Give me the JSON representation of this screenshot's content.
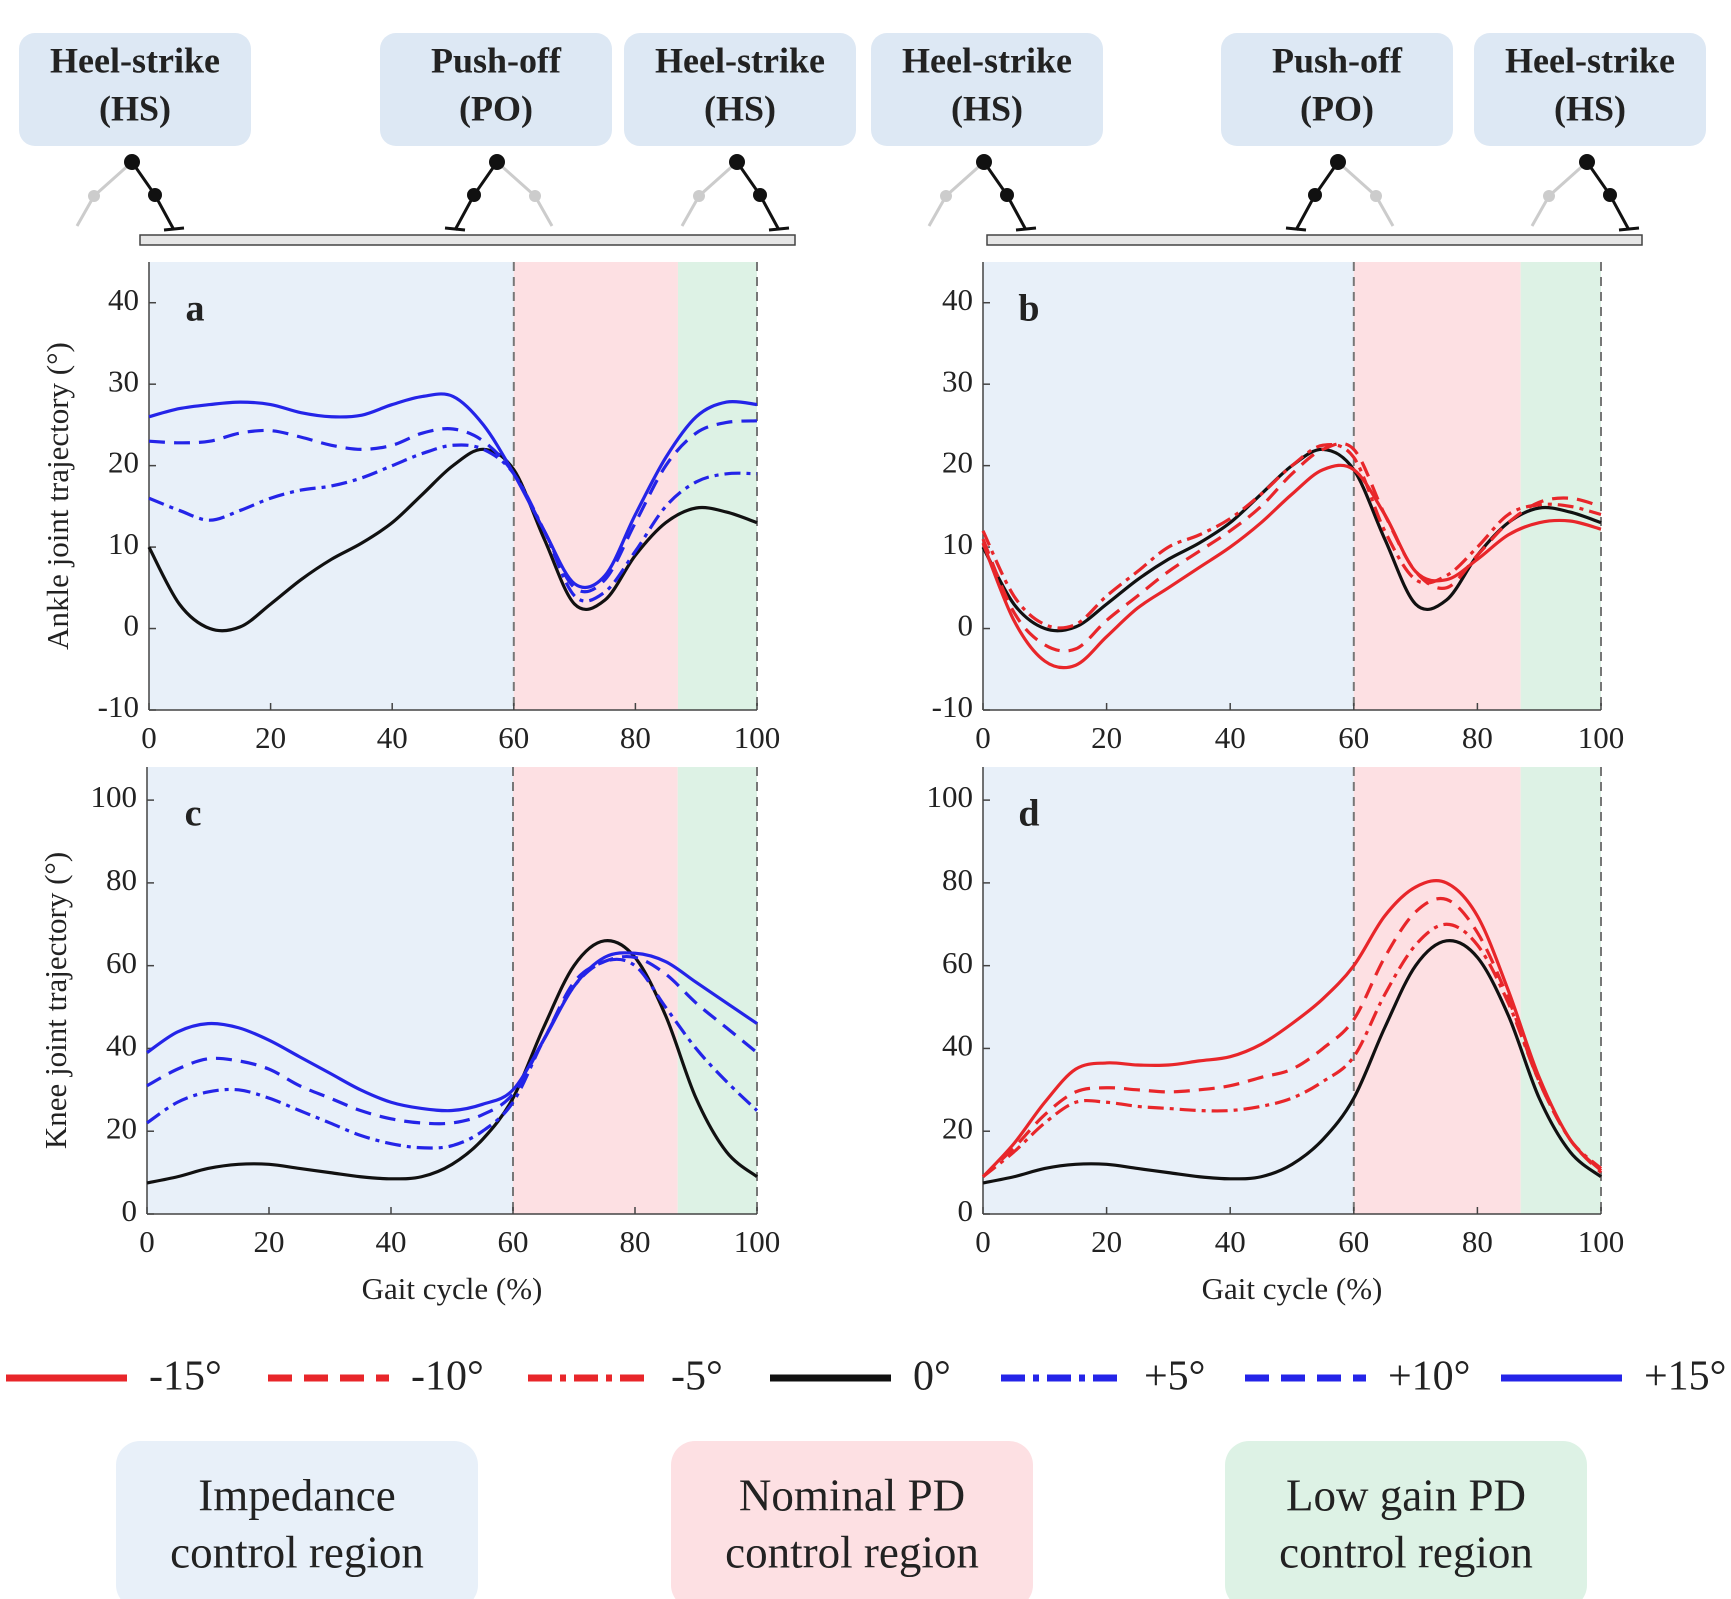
{
  "phase_labels": [
    {
      "lines": [
        "Heel-strike",
        "(HS)"
      ]
    },
    {
      "lines": [
        "Push-off",
        "(PO)"
      ]
    },
    {
      "lines": [
        "Heel-strike",
        "(HS)"
      ]
    },
    {
      "lines": [
        "Heel-strike",
        "(HS)"
      ]
    },
    {
      "lines": [
        "Push-off",
        "(PO)"
      ]
    },
    {
      "lines": [
        "Heel-strike",
        "(HS)"
      ]
    }
  ],
  "legend": [
    {
      "name": "-15°",
      "color": "#e8262a",
      "dash": "solid"
    },
    {
      "name": "-10°",
      "color": "#e8262a",
      "dash": "dashed"
    },
    {
      "name": "-5°",
      "color": "#e8262a",
      "dash": "dashdot"
    },
    {
      "name": "0°",
      "color": "#111111",
      "dash": "solid"
    },
    {
      "name": "+5°",
      "color": "#2424e8",
      "dash": "dashdot"
    },
    {
      "name": "+10°",
      "color": "#2424e8",
      "dash": "dashed"
    },
    {
      "name": "+15°",
      "color": "#2424e8",
      "dash": "solid"
    }
  ],
  "regions": [
    {
      "lines": [
        "Impedance",
        "control region"
      ],
      "color": "#e8f0f9"
    },
    {
      "lines": [
        "Nominal PD",
        "control region"
      ],
      "color": "#fde0e3"
    },
    {
      "lines": [
        "Low gain PD",
        "control region"
      ],
      "color": "#ddf2e5"
    }
  ],
  "chart_data": [
    {
      "type": "line",
      "panel": "a",
      "ylabel": "Ankle joint trajectory (°)",
      "x": [
        0,
        5,
        10,
        15,
        20,
        25,
        30,
        35,
        40,
        45,
        50,
        55,
        60,
        65,
        70,
        75,
        80,
        85,
        90,
        95,
        100
      ],
      "xlim": [
        0,
        100
      ],
      "xticks": [
        0,
        20,
        40,
        60,
        80,
        100
      ],
      "ylim": [
        -10,
        45
      ],
      "yticks": [
        -10,
        0,
        10,
        20,
        30,
        40
      ],
      "spans": [
        {
          "start": 0,
          "end": 60
        },
        {
          "start": 60,
          "end": 87
        },
        {
          "start": 87,
          "end": 100
        }
      ],
      "vlines": [
        60,
        100
      ],
      "series": [
        {
          "color": "#111111",
          "dash": "solid",
          "values": [
            10,
            3,
            0,
            0.2,
            3,
            6,
            8.5,
            10.5,
            13,
            16.5,
            20,
            22,
            19.5,
            11,
            3,
            3.5,
            9,
            13,
            14.8,
            14.3,
            13
          ]
        },
        {
          "color": "#2424e8",
          "dash": "dashdot",
          "values": [
            16,
            14.5,
            13.3,
            14.5,
            16,
            17,
            17.5,
            18.5,
            20,
            21.5,
            22.5,
            22,
            19,
            12,
            4,
            4.5,
            9.5,
            15,
            18,
            19,
            19
          ]
        },
        {
          "color": "#2424e8",
          "dash": "dashed",
          "values": [
            23,
            22.8,
            23,
            24,
            24.3,
            23.5,
            22.5,
            22,
            22.5,
            24,
            24.5,
            23,
            19,
            12,
            5,
            6,
            13,
            20,
            24,
            25.3,
            25.5
          ]
        },
        {
          "color": "#2424e8",
          "dash": "solid",
          "values": [
            26,
            27,
            27.5,
            27.8,
            27.5,
            26.5,
            26,
            26.2,
            27.5,
            28.5,
            28.5,
            25,
            19,
            12,
            5.5,
            6.5,
            14,
            21,
            26,
            27.8,
            27.5
          ]
        }
      ]
    },
    {
      "type": "line",
      "panel": "b",
      "x": [
        0,
        5,
        10,
        15,
        20,
        25,
        30,
        35,
        40,
        45,
        50,
        55,
        60,
        65,
        70,
        75,
        80,
        85,
        90,
        95,
        100
      ],
      "xlim": [
        0,
        100
      ],
      "xticks": [
        0,
        20,
        40,
        60,
        80,
        100
      ],
      "ylim": [
        -10,
        45
      ],
      "yticks": [
        -10,
        0,
        10,
        20,
        30,
        40
      ],
      "spans": [
        {
          "start": 0,
          "end": 60
        },
        {
          "start": 60,
          "end": 87
        },
        {
          "start": 87,
          "end": 100
        }
      ],
      "vlines": [
        60,
        100
      ],
      "series": [
        {
          "color": "#111111",
          "dash": "solid",
          "values": [
            10,
            3,
            0,
            0.2,
            3,
            6,
            8.5,
            10.5,
            13,
            16.5,
            20,
            22,
            19.5,
            11,
            3,
            3.5,
            9,
            13,
            14.8,
            14.3,
            13
          ]
        },
        {
          "color": "#e8262a",
          "dash": "dashdot",
          "values": [
            12,
            4,
            0.5,
            0.5,
            4,
            7,
            10,
            11.5,
            13.5,
            16.5,
            20,
            22.5,
            21,
            12,
            6,
            6.5,
            10,
            14,
            15.2,
            15,
            14
          ]
        },
        {
          "color": "#e8262a",
          "dash": "dashed",
          "values": [
            11,
            2,
            -2,
            -2.5,
            1,
            4,
            7,
            9.5,
            12,
            15,
            19,
            22,
            22,
            14,
            7,
            5,
            9,
            13,
            15.5,
            16,
            15
          ]
        },
        {
          "color": "#e8262a",
          "dash": "solid",
          "values": [
            10.5,
            1,
            -4,
            -4.5,
            -1,
            2.5,
            5,
            7.5,
            10,
            13,
            16.5,
            19.5,
            19.5,
            14,
            7,
            6,
            8.5,
            11.5,
            13,
            13.2,
            12.2
          ]
        }
      ]
    },
    {
      "type": "line",
      "panel": "c",
      "ylabel": "Knee joint trajectory (°)",
      "xlabel": "Gait cycle (%)",
      "x": [
        0,
        5,
        10,
        15,
        20,
        25,
        30,
        35,
        40,
        45,
        50,
        55,
        60,
        65,
        70,
        75,
        80,
        85,
        90,
        95,
        100
      ],
      "xlim": [
        0,
        100
      ],
      "xticks": [
        0,
        20,
        40,
        60,
        80,
        100
      ],
      "ylim": [
        0,
        108
      ],
      "yticks": [
        0,
        20,
        40,
        60,
        80,
        100
      ],
      "spans": [
        {
          "start": 0,
          "end": 60
        },
        {
          "start": 60,
          "end": 87
        },
        {
          "start": 87,
          "end": 100
        }
      ],
      "vlines": [
        60,
        100
      ],
      "series": [
        {
          "color": "#111111",
          "dash": "solid",
          "values": [
            7.5,
            9,
            11,
            12,
            12,
            11,
            10,
            9,
            8.5,
            9,
            12,
            18,
            28,
            45,
            60,
            66,
            62,
            48,
            28,
            15,
            9
          ]
        },
        {
          "color": "#2424e8",
          "dash": "dashdot",
          "values": [
            22,
            27,
            29.5,
            30,
            28,
            25,
            22,
            19,
            17,
            16,
            16.5,
            20,
            27,
            42,
            55,
            61,
            60,
            50,
            40,
            32,
            25
          ]
        },
        {
          "color": "#2424e8",
          "dash": "dashed",
          "values": [
            31,
            35,
            37.5,
            37,
            35,
            31,
            28,
            25,
            23,
            22,
            22,
            24,
            29,
            42,
            56,
            61,
            62,
            58,
            51,
            45,
            39
          ]
        },
        {
          "color": "#2424e8",
          "dash": "solid",
          "values": [
            39,
            44,
            46,
            45,
            42,
            38,
            34,
            30,
            27,
            25.5,
            25,
            26.5,
            30,
            42,
            55,
            62,
            63,
            61,
            56,
            51,
            46
          ]
        }
      ]
    },
    {
      "type": "line",
      "panel": "d",
      "xlabel": "Gait cycle (%)",
      "x": [
        0,
        5,
        10,
        15,
        20,
        25,
        30,
        35,
        40,
        45,
        50,
        55,
        60,
        65,
        70,
        75,
        80,
        85,
        90,
        95,
        100
      ],
      "xlim": [
        0,
        100
      ],
      "xticks": [
        0,
        20,
        40,
        60,
        80,
        100
      ],
      "ylim": [
        0,
        108
      ],
      "yticks": [
        0,
        20,
        40,
        60,
        80,
        100
      ],
      "spans": [
        {
          "start": 0,
          "end": 60
        },
        {
          "start": 60,
          "end": 87
        },
        {
          "start": 87,
          "end": 100
        }
      ],
      "vlines": [
        60,
        100
      ],
      "series": [
        {
          "color": "#111111",
          "dash": "solid",
          "values": [
            7.5,
            9,
            11,
            12,
            12,
            11,
            10,
            9,
            8.5,
            9,
            12,
            18,
            28,
            45,
            60,
            66,
            62,
            48,
            28,
            15,
            9
          ]
        },
        {
          "color": "#e8262a",
          "dash": "dashdot",
          "values": [
            9,
            15,
            22,
            27,
            27,
            26,
            25.5,
            25,
            25,
            26,
            28,
            32,
            38,
            53,
            65,
            70,
            65,
            51,
            32,
            18,
            11
          ]
        },
        {
          "color": "#e8262a",
          "dash": "dashed",
          "values": [
            9,
            16,
            24,
            29.5,
            30.5,
            30,
            29.5,
            30,
            31,
            33,
            35,
            40,
            47,
            62,
            73,
            76,
            68,
            52,
            32,
            18,
            10
          ]
        },
        {
          "color": "#e8262a",
          "dash": "solid",
          "values": [
            9,
            17,
            27,
            35,
            36.5,
            36,
            36,
            37,
            38,
            41,
            46,
            52,
            60,
            72,
            79,
            80,
            72,
            54,
            33,
            18,
            10.5
          ]
        }
      ]
    }
  ]
}
